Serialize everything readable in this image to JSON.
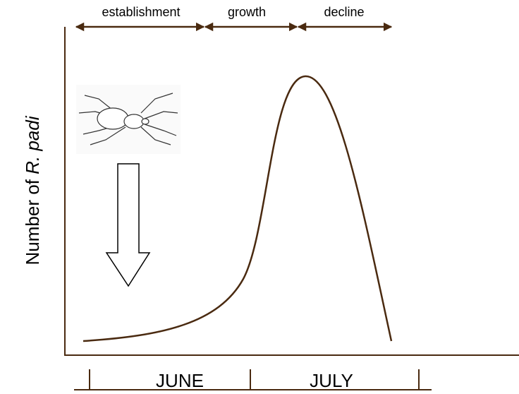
{
  "phases": [
    "establishment",
    "growth",
    "decline"
  ],
  "y_axis_label": {
    "prefix": "Number of ",
    "italic": "R. padi"
  },
  "months": [
    "JUNE",
    "JULY"
  ]
}
